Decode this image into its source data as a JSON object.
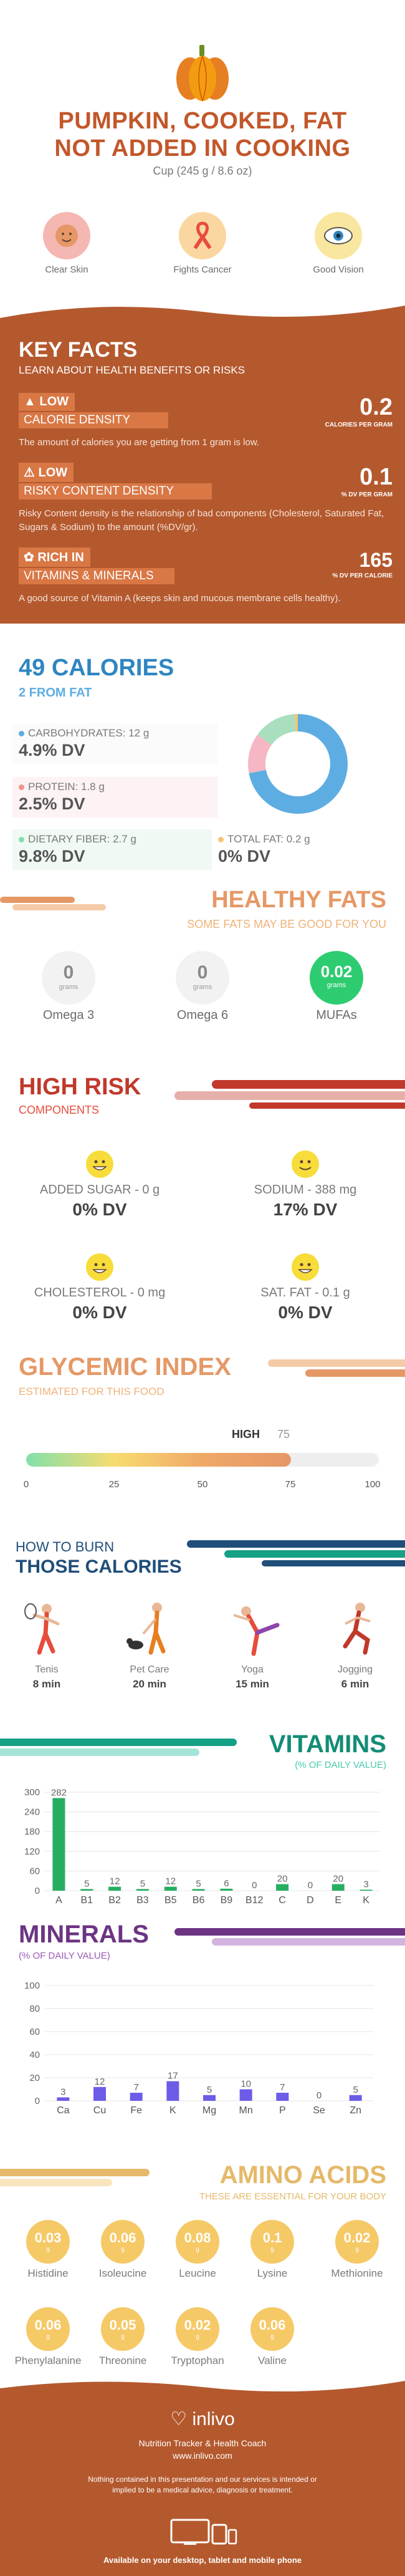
{
  "header": {
    "title_line1": "PUMPKIN, COOKED, FAT",
    "title_line2": "NOT ADDED IN COOKING",
    "serving": "Cup (245 g / 8.6 oz)",
    "benefits": [
      {
        "label": "Clear Skin",
        "icon": "face-icon",
        "color": "#f5b7b1"
      },
      {
        "label": "Fights Cancer",
        "icon": "ribbon-icon",
        "color": "#fad7a0"
      },
      {
        "label": "Good Vision",
        "icon": "eye-icon",
        "color": "#f9e79f"
      }
    ]
  },
  "key_facts": {
    "title": "KEY FACTS",
    "subtitle": "LEARN ABOUT HEALTH BENEFITS OR RISKS",
    "facts": [
      {
        "level": "LOW",
        "name": "CALORIE DENSITY",
        "value": "0.2",
        "unit": "CALORIES PER GRAM",
        "desc": "The amount of calories you are getting from 1 gram is low.",
        "icon": "flame-icon"
      },
      {
        "level": "LOW",
        "name": "RISKY CONTENT DENSITY",
        "value": "0.1",
        "unit": "% DV PER GRAM",
        "desc": "Risky Content density is the relationship of bad components (Cholesterol, Saturated Fat, Sugars & Sodium) to the amount (%DV/gr).",
        "icon": "warning-icon"
      },
      {
        "level": "RICH  IN",
        "name": "VITAMINS & MINERALS",
        "value": "165",
        "unit": "% DV PER CALORIE",
        "desc": "A good source of Vitamin A (keeps skin and mucous membrane cells healthy).",
        "icon": "leaf-icon"
      }
    ]
  },
  "calories": {
    "title": "49 CALORIES",
    "subtitle": "2 FROM FAT",
    "nutrients": [
      {
        "label": "CARBOHYDRATES: 12 g",
        "dv": "4.9% DV",
        "color": "#5dade2"
      },
      {
        "label": "PROTEIN: 1.8 g",
        "dv": "2.5% DV",
        "color": "#f1948a"
      },
      {
        "label": "DIETARY FIBER: 2.7 g",
        "dv": "9.8% DV",
        "color": "#82e0aa"
      },
      {
        "label": "TOTAL FAT: 0.2 g",
        "dv": "0% DV",
        "color": "#f8c471"
      }
    ],
    "donut": [
      {
        "name": "carbs",
        "value": 72,
        "color": "#5dade2"
      },
      {
        "name": "protein",
        "value": 13,
        "color": "#f5b7c4"
      },
      {
        "name": "fiber",
        "value": 14,
        "color": "#a9dfbf"
      },
      {
        "name": "fat",
        "value": 1,
        "color": "#f8c471"
      }
    ]
  },
  "healthy_fats": {
    "title": "HEALTHY FATS",
    "subtitle": "SOME FATS MAY BE GOOD FOR YOU",
    "unit": "grams",
    "items": [
      {
        "label": "Omega 3",
        "value": "0"
      },
      {
        "label": "Omega 6",
        "value": "0"
      },
      {
        "label": "MUFAs",
        "value": "0.02"
      }
    ]
  },
  "high_risk": {
    "title": "HIGH RISK",
    "subtitle": "COMPONENTS",
    "items": [
      {
        "label": "ADDED SUGAR - 0 g",
        "dv": "0% DV",
        "icon": "smiley-grin-icon"
      },
      {
        "label": "SODIUM - 388 mg",
        "dv": "17% DV",
        "icon": "smiley-icon"
      },
      {
        "label": "CHOLESTEROL - 0 mg",
        "dv": "0% DV",
        "icon": "smiley-grin-icon"
      },
      {
        "label": "SAT. FAT - 0.1 g",
        "dv": "0% DV",
        "icon": "smiley-grin-icon"
      }
    ]
  },
  "glycemic": {
    "title": "GLYCEMIC INDEX",
    "subtitle": "ESTIMATED FOR THIS FOOD",
    "level": "HIGH",
    "value": 75,
    "max": 100,
    "ticks": [
      "0",
      "25",
      "50",
      "75",
      "100"
    ]
  },
  "burn": {
    "title1": "HOW TO BURN",
    "title2": "THOSE CALORIES",
    "activities": [
      {
        "label": "Tenis",
        "time": "8 min",
        "icon": "tennis-icon"
      },
      {
        "label": "Pet Care",
        "time": "20 min",
        "icon": "dog-walking-icon"
      },
      {
        "label": "Yoga",
        "time": "15 min",
        "icon": "yoga-icon"
      },
      {
        "label": "Jogging",
        "time": "6 min",
        "icon": "jogging-icon"
      }
    ]
  },
  "vitamins": {
    "title": "VITAMINS",
    "subtitle": "(% OF DAILY VALUE)"
  },
  "minerals": {
    "title": "MINERALS",
    "subtitle": "(% OF DAILY VALUE)"
  },
  "chart_data": [
    {
      "type": "bar",
      "categories": [
        "A",
        "B1",
        "B2",
        "B3",
        "B5",
        "B6",
        "B9",
        "B12",
        "C",
        "D",
        "E",
        "K"
      ],
      "values": [
        282,
        5,
        12,
        5,
        12,
        5,
        6,
        0,
        20,
        0,
        20,
        3
      ],
      "ylim": [
        0,
        300
      ],
      "yticks": [
        0,
        60,
        120,
        180,
        240,
        300
      ],
      "grid": true,
      "color": "#27ae60"
    },
    {
      "type": "bar",
      "categories": [
        "Ca",
        "Cu",
        "Fe",
        "K",
        "Mg",
        "Mn",
        "P",
        "Se",
        "Zn"
      ],
      "values": [
        3,
        12,
        7,
        17,
        5,
        10,
        7,
        0,
        5
      ],
      "ylim": [
        0,
        100
      ],
      "yticks": [
        0,
        20,
        40,
        60,
        80,
        100
      ],
      "grid": true,
      "color": "#6c5ce7"
    }
  ],
  "amino": {
    "title": "AMINO ACIDS",
    "subtitle": "THESE ARE ESSENTIAL FOR YOUR BODY",
    "unit": "g",
    "items": [
      {
        "label": "Histidine",
        "value": "0.03"
      },
      {
        "label": "Isoleucine",
        "value": "0.06"
      },
      {
        "label": "Leucine",
        "value": "0.08"
      },
      {
        "label": "Lysine",
        "value": "0.1"
      },
      {
        "label": "Methionine",
        "value": "0.02"
      },
      {
        "label": "Phenylalanine",
        "value": "0.06"
      },
      {
        "label": "Threonine",
        "value": "0.05"
      },
      {
        "label": "Tryptophan",
        "value": "0.02"
      },
      {
        "label": "Valine",
        "value": "0.06"
      }
    ]
  },
  "footer": {
    "brand": "inlivo",
    "line1": "Nutrition Tracker & Health Coach",
    "line2": "www.inlivo.com",
    "disclaimer": "Nothing contained in this presentation and our services is intended or implied to be a medical advice, diagnosis or treatment.",
    "available": "Available on your desktop, tablet and mobile phone"
  }
}
